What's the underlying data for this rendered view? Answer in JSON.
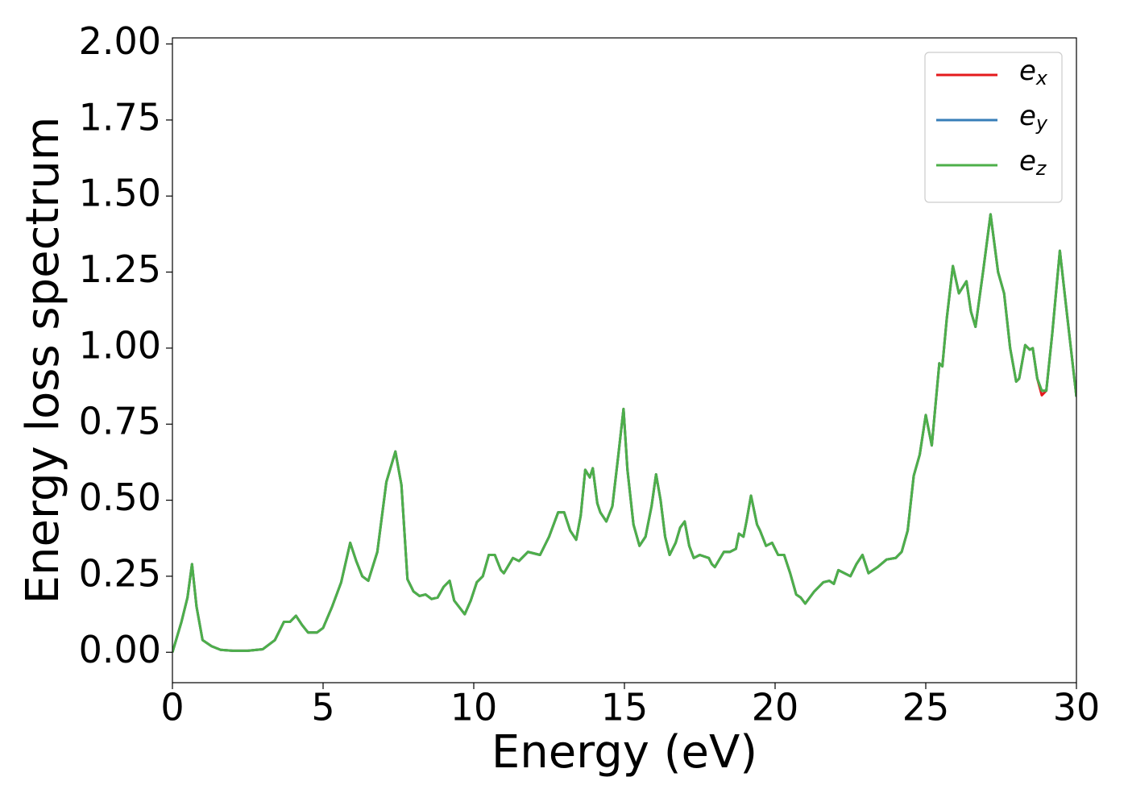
{
  "chart_data": {
    "type": "line",
    "xlabel": "Energy (eV)",
    "ylabel": "Energy loss spectrum",
    "x": [
      0,
      0.3,
      0.5,
      0.65,
      0.8,
      1.0,
      1.3,
      1.6,
      2.0,
      2.5,
      3.0,
      3.4,
      3.7,
      3.9,
      4.1,
      4.3,
      4.5,
      4.8,
      5.0,
      5.3,
      5.6,
      5.9,
      6.1,
      6.3,
      6.5,
      6.8,
      7.1,
      7.4,
      7.6,
      7.8,
      8.0,
      8.2,
      8.4,
      8.6,
      8.8,
      9.0,
      9.2,
      9.35,
      9.7,
      9.9,
      10.1,
      10.3,
      10.5,
      10.7,
      10.9,
      11.0,
      11.3,
      11.5,
      11.8,
      12.0,
      12.2,
      12.5,
      12.8,
      13.0,
      13.2,
      13.4,
      13.55,
      13.7,
      13.85,
      13.95,
      14.1,
      14.2,
      14.4,
      14.6,
      14.8,
      14.97,
      15.1,
      15.3,
      15.5,
      15.7,
      15.9,
      16.05,
      16.2,
      16.35,
      16.5,
      16.7,
      16.85,
      17.0,
      17.15,
      17.3,
      17.5,
      17.8,
      17.9,
      18.0,
      18.3,
      18.5,
      18.7,
      18.8,
      18.95,
      19.05,
      19.2,
      19.4,
      19.5,
      19.7,
      19.9,
      20.1,
      20.3,
      20.5,
      20.7,
      20.85,
      21.0,
      21.3,
      21.6,
      21.8,
      21.95,
      22.1,
      22.5,
      22.7,
      22.9,
      23.1,
      23.4,
      23.7,
      24.0,
      24.2,
      24.4,
      24.6,
      24.8,
      25.0,
      25.2,
      25.45,
      25.55,
      25.7,
      25.9,
      26.1,
      26.35,
      26.5,
      26.65,
      26.9,
      27.15,
      27.4,
      27.6,
      27.8,
      28.0,
      28.1,
      28.3,
      28.45,
      28.55,
      28.7,
      28.85,
      29.0,
      29.2,
      29.45,
      29.7,
      30.0
    ],
    "series": [
      {
        "name": "e_x",
        "color": "#e41a1c",
        "values": [
          0.0,
          0.1,
          0.18,
          0.29,
          0.15,
          0.04,
          0.02,
          0.008,
          0.005,
          0.005,
          0.01,
          0.04,
          0.1,
          0.1,
          0.12,
          0.09,
          0.065,
          0.065,
          0.08,
          0.15,
          0.23,
          0.36,
          0.3,
          0.25,
          0.235,
          0.33,
          0.56,
          0.66,
          0.55,
          0.24,
          0.2,
          0.185,
          0.19,
          0.175,
          0.18,
          0.215,
          0.235,
          0.17,
          0.125,
          0.17,
          0.23,
          0.25,
          0.32,
          0.32,
          0.27,
          0.26,
          0.31,
          0.3,
          0.33,
          0.325,
          0.32,
          0.38,
          0.46,
          0.46,
          0.4,
          0.37,
          0.45,
          0.6,
          0.575,
          0.605,
          0.49,
          0.46,
          0.43,
          0.48,
          0.65,
          0.8,
          0.6,
          0.42,
          0.35,
          0.38,
          0.48,
          0.585,
          0.5,
          0.38,
          0.32,
          0.36,
          0.41,
          0.43,
          0.35,
          0.31,
          0.32,
          0.31,
          0.29,
          0.28,
          0.33,
          0.33,
          0.34,
          0.39,
          0.38,
          0.43,
          0.515,
          0.42,
          0.4,
          0.35,
          0.36,
          0.32,
          0.32,
          0.26,
          0.19,
          0.18,
          0.16,
          0.2,
          0.23,
          0.235,
          0.225,
          0.27,
          0.25,
          0.29,
          0.32,
          0.26,
          0.28,
          0.305,
          0.31,
          0.33,
          0.4,
          0.58,
          0.65,
          0.78,
          0.68,
          0.95,
          0.94,
          1.1,
          1.27,
          1.18,
          1.22,
          1.12,
          1.07,
          1.25,
          1.44,
          1.25,
          1.18,
          1.0,
          0.89,
          0.9,
          1.01,
          0.995,
          1.0,
          0.9,
          0.845,
          0.86,
          1.05,
          1.32,
          1.1,
          0.84
        ]
      },
      {
        "name": "e_y",
        "color": "#377eb8",
        "values": [
          0.0,
          0.1,
          0.18,
          0.29,
          0.15,
          0.04,
          0.02,
          0.008,
          0.005,
          0.005,
          0.01,
          0.04,
          0.1,
          0.1,
          0.12,
          0.09,
          0.065,
          0.065,
          0.08,
          0.15,
          0.23,
          0.36,
          0.3,
          0.25,
          0.235,
          0.33,
          0.56,
          0.66,
          0.55,
          0.24,
          0.2,
          0.185,
          0.19,
          0.175,
          0.18,
          0.215,
          0.235,
          0.17,
          0.125,
          0.17,
          0.23,
          0.25,
          0.32,
          0.32,
          0.27,
          0.26,
          0.31,
          0.3,
          0.33,
          0.325,
          0.32,
          0.38,
          0.46,
          0.46,
          0.4,
          0.37,
          0.45,
          0.6,
          0.575,
          0.605,
          0.49,
          0.46,
          0.43,
          0.48,
          0.65,
          0.8,
          0.6,
          0.42,
          0.35,
          0.38,
          0.48,
          0.585,
          0.5,
          0.38,
          0.32,
          0.36,
          0.41,
          0.43,
          0.35,
          0.31,
          0.32,
          0.31,
          0.29,
          0.28,
          0.33,
          0.33,
          0.34,
          0.39,
          0.38,
          0.43,
          0.515,
          0.42,
          0.4,
          0.35,
          0.36,
          0.32,
          0.32,
          0.26,
          0.19,
          0.18,
          0.16,
          0.2,
          0.23,
          0.235,
          0.225,
          0.27,
          0.25,
          0.29,
          0.32,
          0.26,
          0.28,
          0.305,
          0.31,
          0.33,
          0.4,
          0.58,
          0.65,
          0.78,
          0.68,
          0.95,
          0.94,
          1.1,
          1.27,
          1.18,
          1.22,
          1.12,
          1.07,
          1.25,
          1.44,
          1.25,
          1.18,
          1.0,
          0.89,
          0.9,
          1.01,
          0.995,
          1.0,
          0.9,
          0.86,
          0.86,
          1.05,
          1.32,
          1.1,
          0.84
        ]
      },
      {
        "name": "e_z",
        "color": "#4daf4a",
        "values": [
          0.0,
          0.1,
          0.18,
          0.29,
          0.15,
          0.04,
          0.02,
          0.008,
          0.005,
          0.005,
          0.01,
          0.04,
          0.1,
          0.1,
          0.12,
          0.09,
          0.065,
          0.065,
          0.08,
          0.15,
          0.23,
          0.36,
          0.3,
          0.25,
          0.235,
          0.33,
          0.56,
          0.66,
          0.55,
          0.24,
          0.2,
          0.185,
          0.19,
          0.175,
          0.18,
          0.215,
          0.235,
          0.17,
          0.125,
          0.17,
          0.23,
          0.25,
          0.32,
          0.32,
          0.27,
          0.26,
          0.31,
          0.3,
          0.33,
          0.325,
          0.32,
          0.38,
          0.46,
          0.46,
          0.4,
          0.37,
          0.45,
          0.6,
          0.575,
          0.605,
          0.49,
          0.46,
          0.43,
          0.48,
          0.65,
          0.8,
          0.6,
          0.42,
          0.35,
          0.38,
          0.48,
          0.585,
          0.5,
          0.38,
          0.32,
          0.36,
          0.41,
          0.43,
          0.35,
          0.31,
          0.32,
          0.31,
          0.29,
          0.28,
          0.33,
          0.33,
          0.34,
          0.39,
          0.38,
          0.43,
          0.515,
          0.42,
          0.4,
          0.35,
          0.36,
          0.32,
          0.32,
          0.26,
          0.19,
          0.18,
          0.16,
          0.2,
          0.23,
          0.235,
          0.225,
          0.27,
          0.25,
          0.29,
          0.32,
          0.26,
          0.28,
          0.305,
          0.31,
          0.33,
          0.4,
          0.58,
          0.65,
          0.78,
          0.68,
          0.95,
          0.94,
          1.1,
          1.27,
          1.18,
          1.22,
          1.12,
          1.07,
          1.25,
          1.44,
          1.25,
          1.18,
          1.0,
          0.89,
          0.9,
          1.01,
          0.995,
          1.0,
          0.9,
          0.86,
          0.86,
          1.05,
          1.32,
          1.1,
          0.84
        ]
      }
    ],
    "xlim": [
      0,
      30
    ],
    "xticks": [
      0,
      5,
      10,
      15,
      20,
      25,
      30
    ],
    "ylim": [
      -0.1,
      2.02
    ],
    "yticks": [
      {
        "value": 0,
        "label": "0.00"
      },
      {
        "value": 0.25,
        "label": "0.25"
      },
      {
        "value": 0.5,
        "label": "0.50"
      },
      {
        "value": 0.75,
        "label": "0.75"
      },
      {
        "value": 1,
        "label": "1.00"
      },
      {
        "value": 1.25,
        "label": "1.25"
      },
      {
        "value": 1.5,
        "label": "1.50"
      },
      {
        "value": 1.75,
        "label": "1.75"
      },
      {
        "value": 2,
        "label": "2.00"
      }
    ],
    "grid": false,
    "legend": "upper right"
  }
}
